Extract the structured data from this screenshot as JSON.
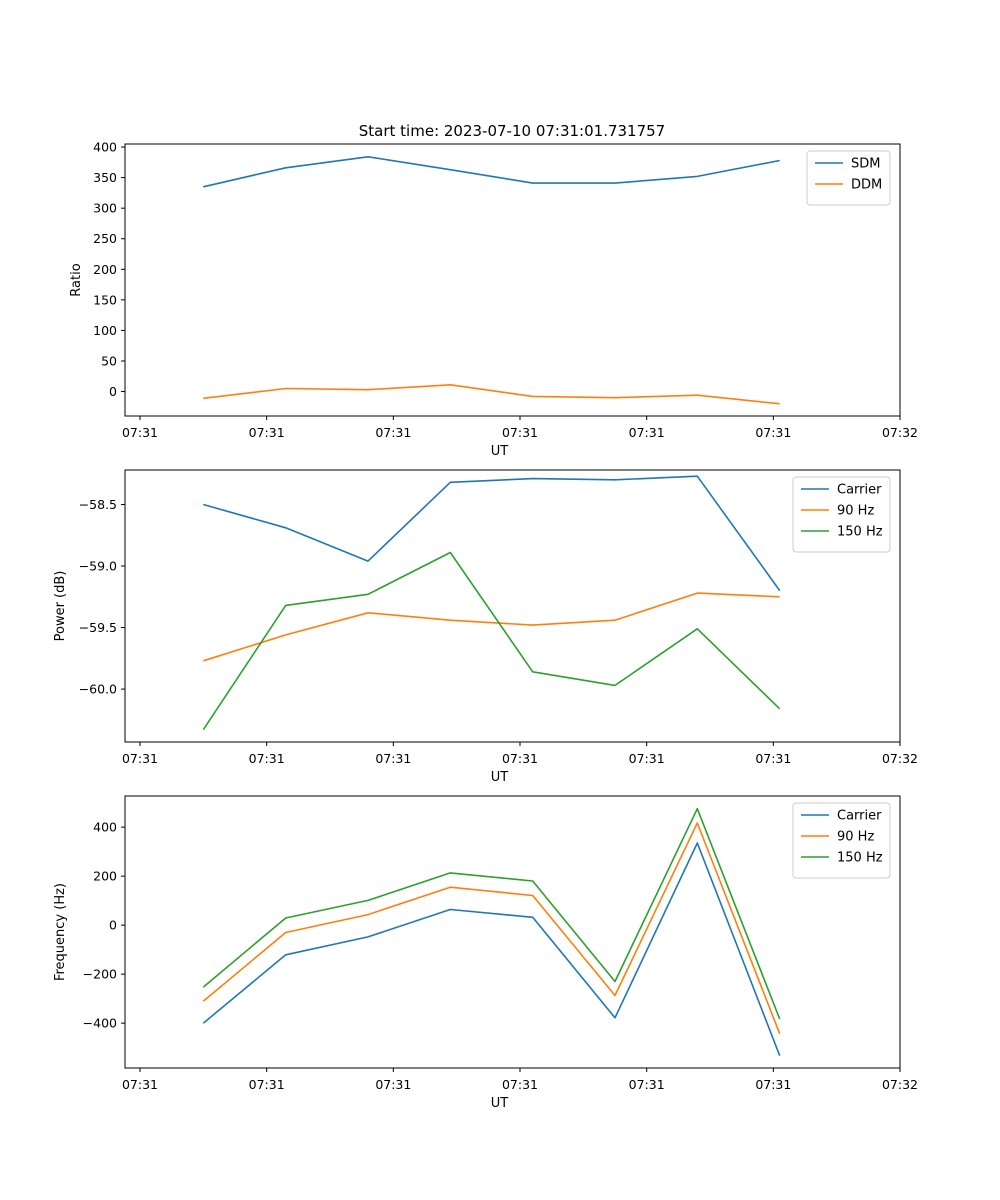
{
  "figure": {
    "title": "Start time: 2023-07-10 07:31:01.731757",
    "colors": {
      "blue": "#1f77b4",
      "orange": "#ff7f0e",
      "green": "#2ca02c"
    }
  },
  "chart_data": [
    {
      "type": "line",
      "title": "Start time: 2023-07-10 07:31:01.731757",
      "xlabel": "UT",
      "ylabel": "Ratio",
      "xlim": [
        0,
        6
      ],
      "x_ticks": [
        0,
        1,
        2,
        3,
        4,
        5,
        6
      ],
      "x_tick_labels": [
        "07:31",
        "07:31",
        "07:31",
        "07:31",
        "07:31",
        "07:31",
        "07:32"
      ],
      "ylim": [
        -40,
        405
      ],
      "y_ticks": [
        0,
        50,
        100,
        150,
        200,
        250,
        300,
        350,
        400
      ],
      "y_tick_labels": [
        "0",
        "50",
        "100",
        "150",
        "200",
        "250",
        "300",
        "350",
        "400"
      ],
      "x": [
        0.5,
        1.15,
        1.8,
        2.45,
        3.1,
        3.75,
        4.4,
        5.05
      ],
      "series": [
        {
          "name": "SDM",
          "color": "#1f77b4",
          "values": [
            335,
            366,
            384,
            363,
            341,
            341,
            352,
            378
          ]
        },
        {
          "name": "DDM",
          "color": "#ff7f0e",
          "values": [
            -11,
            5,
            3,
            11,
            -8,
            -10,
            -6,
            -20
          ]
        }
      ],
      "legend": "top-right"
    },
    {
      "type": "line",
      "xlabel": "UT",
      "ylabel": "Power (dB)",
      "xlim": [
        0,
        6
      ],
      "x_ticks": [
        0,
        1,
        2,
        3,
        4,
        5,
        6
      ],
      "x_tick_labels": [
        "07:31",
        "07:31",
        "07:31",
        "07:31",
        "07:31",
        "07:31",
        "07:32"
      ],
      "ylim": [
        -60.43,
        -58.22
      ],
      "y_ticks": [
        -60.0,
        -59.5,
        -59.0,
        -58.5
      ],
      "y_tick_labels": [
        "−60.0",
        "−59.5",
        "−59.0",
        "−58.5"
      ],
      "x": [
        0.5,
        1.15,
        1.8,
        2.45,
        3.1,
        3.75,
        4.4,
        5.05
      ],
      "series": [
        {
          "name": "Carrier",
          "color": "#1f77b4",
          "values": [
            -58.5,
            -58.69,
            -58.96,
            -58.32,
            -58.29,
            -58.3,
            -58.27,
            -59.2
          ]
        },
        {
          "name": "90 Hz",
          "color": "#ff7f0e",
          "values": [
            -59.77,
            -59.56,
            -59.38,
            -59.44,
            -59.48,
            -59.44,
            -59.22,
            -59.25
          ]
        },
        {
          "name": "150 Hz",
          "color": "#2ca02c",
          "values": [
            -60.33,
            -59.32,
            -59.23,
            -58.89,
            -59.86,
            -59.97,
            -59.51,
            -60.16
          ]
        }
      ],
      "legend": "top-right"
    },
    {
      "type": "line",
      "xlabel": "UT",
      "ylabel": "Frequency (Hz)",
      "xlim": [
        0,
        6
      ],
      "x_ticks": [
        0,
        1,
        2,
        3,
        4,
        5,
        6
      ],
      "x_tick_labels": [
        "07:31",
        "07:31",
        "07:31",
        "07:31",
        "07:31",
        "07:31",
        "07:32"
      ],
      "ylim": [
        -583,
        527
      ],
      "y_ticks": [
        -400,
        -200,
        0,
        200,
        400
      ],
      "y_tick_labels": [
        "−400",
        "−200",
        "0",
        "200",
        "400"
      ],
      "x": [
        0.5,
        1.15,
        1.8,
        2.45,
        3.1,
        3.75,
        4.4,
        5.05
      ],
      "series": [
        {
          "name": "Carrier",
          "color": "#1f77b4",
          "values": [
            -400,
            -121,
            -48,
            64,
            32,
            -378,
            335,
            -533
          ]
        },
        {
          "name": "90 Hz",
          "color": "#ff7f0e",
          "values": [
            -311,
            -30,
            43,
            155,
            121,
            -287,
            417,
            -443
          ]
        },
        {
          "name": "150 Hz",
          "color": "#2ca02c",
          "values": [
            -253,
            29,
            101,
            213,
            180,
            -230,
            475,
            -383
          ]
        }
      ],
      "legend": "top-right"
    }
  ]
}
